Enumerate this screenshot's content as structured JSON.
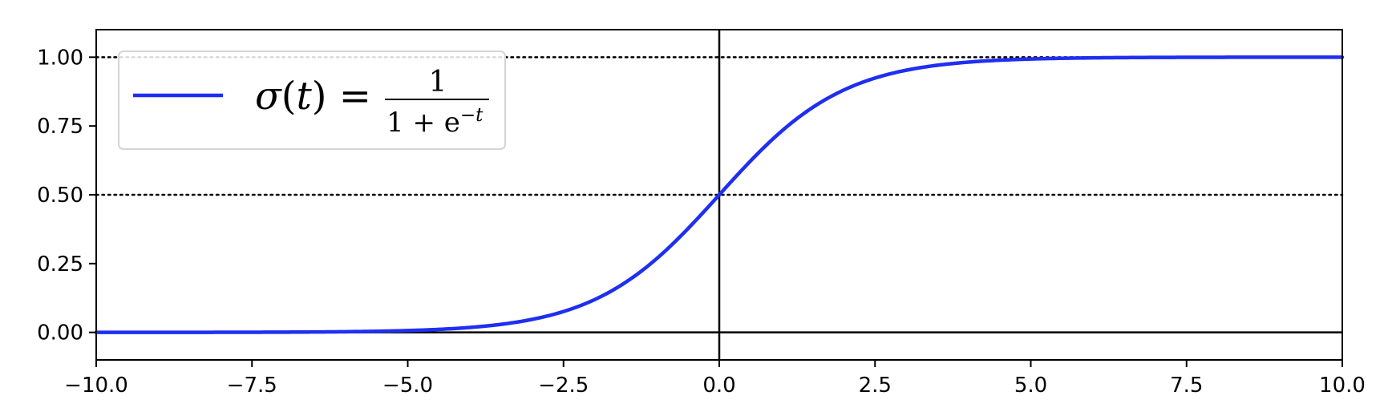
{
  "chart_data": {
    "type": "line",
    "title": "",
    "xlabel": "",
    "ylabel": "",
    "xlim": [
      -10,
      10
    ],
    "ylim": [
      -0.1,
      1.1
    ],
    "xticks": [
      -10,
      -7.5,
      -5,
      -2.5,
      0,
      2.5,
      5,
      7.5,
      10
    ],
    "xtick_labels": [
      "−10.0",
      "−7.5",
      "−5.0",
      "−2.5",
      "0.0",
      "2.5",
      "5.0",
      "7.5",
      "10.0"
    ],
    "yticks": [
      0,
      0.25,
      0.5,
      0.75,
      1
    ],
    "ytick_labels": [
      "0.00",
      "0.25",
      "0.50",
      "0.75",
      "1.00"
    ],
    "grid": false,
    "legend_position": "upper-left",
    "series": [
      {
        "name": "σ(t) = 1 / (1 + e^−t)",
        "color": "#1f2ff0",
        "x": [
          -10,
          -9,
          -8,
          -7,
          -6,
          -5,
          -4.5,
          -4,
          -3.5,
          -3,
          -2.5,
          -2,
          -1.5,
          -1,
          -0.5,
          0,
          0.5,
          1,
          1.5,
          2,
          2.5,
          3,
          3.5,
          4,
          4.5,
          5,
          6,
          7,
          8,
          9,
          10
        ],
        "y": [
          5e-05,
          0.00012,
          0.00034,
          0.00091,
          0.00247,
          0.00669,
          0.01099,
          0.01799,
          0.02931,
          0.04743,
          0.07586,
          0.1192,
          0.18243,
          0.26894,
          0.37754,
          0.5,
          0.62246,
          0.73106,
          0.81757,
          0.8808,
          0.92414,
          0.95257,
          0.97069,
          0.98201,
          0.98901,
          0.99331,
          0.99753,
          0.99909,
          0.99966,
          0.99988,
          0.99995
        ]
      }
    ],
    "reference_lines": [
      {
        "orientation": "horizontal",
        "value": 0,
        "style": "solid",
        "color": "#000000"
      },
      {
        "orientation": "horizontal",
        "value": 0.5,
        "style": "dotted",
        "color": "#000000"
      },
      {
        "orientation": "horizontal",
        "value": 1,
        "style": "dotted",
        "color": "#000000"
      },
      {
        "orientation": "vertical",
        "value": 0,
        "style": "solid",
        "color": "#000000"
      }
    ],
    "legend": {
      "symbol": "σ",
      "variable": "t",
      "numerator": "1",
      "denominator_base": "1 + e",
      "exponent": "−t"
    }
  }
}
